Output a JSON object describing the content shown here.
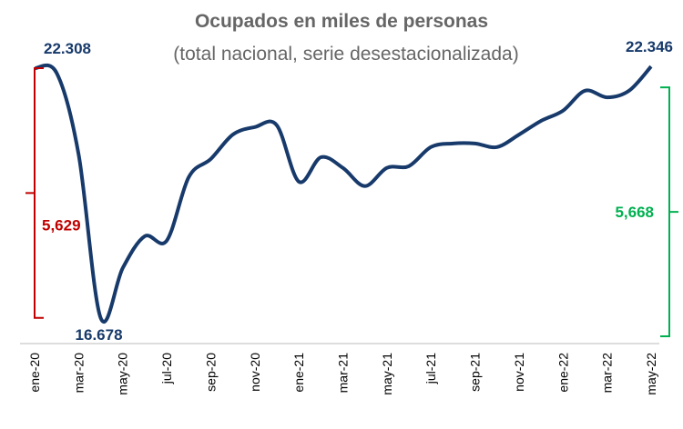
{
  "chart_data": {
    "type": "line",
    "title": "Ocupados en miles de personas",
    "subtitle": "(total nacional, serie desestacionalizada)",
    "categories": [
      "ene-20",
      null,
      "mar-20",
      null,
      "may-20",
      null,
      "jul-20",
      null,
      "sep-20",
      null,
      "nov-20",
      null,
      "ene-21",
      null,
      "mar-21",
      null,
      "may-21",
      null,
      "jul-21",
      null,
      "sep-21",
      null,
      "nov-21",
      null,
      "ene-22",
      null,
      "mar-22",
      null,
      "may-22"
    ],
    "series": [
      {
        "color": "#173a6b",
        "values": [
          22308,
          22200,
          20360,
          16678,
          17800,
          18520,
          18420,
          19850,
          20260,
          20810,
          20980,
          21020,
          19750,
          20300,
          20060,
          19650,
          20060,
          20100,
          20530,
          20610,
          20610,
          20530,
          20810,
          21120,
          21350,
          21800,
          21650,
          21800,
          22346
        ],
        "value_labels": [
          "22.308",
          null,
          null,
          "16.678",
          null,
          null,
          null,
          null,
          null,
          null,
          null,
          null,
          null,
          null,
          null,
          null,
          null,
          null,
          null,
          null,
          null,
          null,
          null,
          null,
          null,
          null,
          null,
          null,
          "22.346"
        ]
      }
    ],
    "ylim": [
      16100,
      23230
    ],
    "annotations": [
      {
        "text": "5,629",
        "color": "#c00000"
      },
      {
        "text": "5,668",
        "color": "#00b050"
      }
    ]
  }
}
